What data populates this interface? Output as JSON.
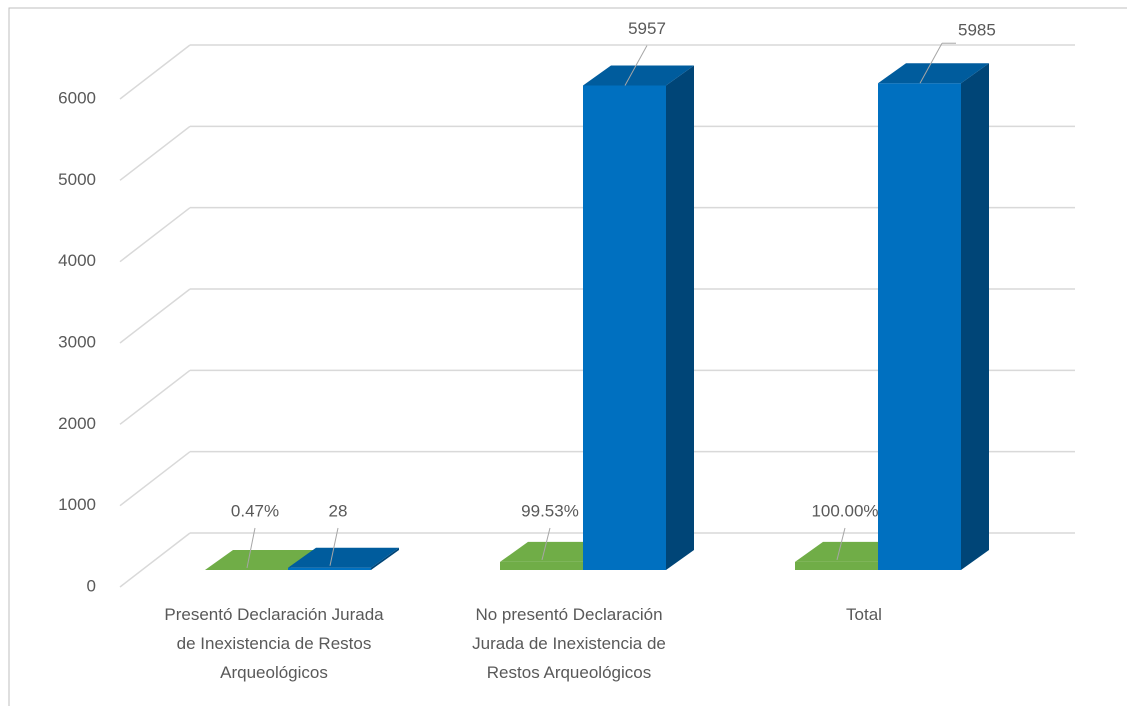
{
  "chart_data": {
    "type": "bar3d",
    "categories": [
      "Presentó Declaración Jurada de Inexistencia de Restos Arqueológicos",
      "No presentó Declaración Jurada de Inexistencia de Restos Arqueológicos",
      "Total"
    ],
    "series": [
      {
        "color": "#70ad47",
        "values": [
          0.47,
          99.53,
          100.0
        ],
        "value_labels": [
          "0.47%",
          "99.53%",
          "100.00%"
        ]
      },
      {
        "color": "#0070c0",
        "values": [
          28,
          5957,
          5985
        ]
      }
    ],
    "ylim": [
      0,
      6000
    ],
    "yticks": [
      0,
      1000,
      2000,
      3000,
      4000,
      5000,
      6000
    ],
    "grid": true
  }
}
